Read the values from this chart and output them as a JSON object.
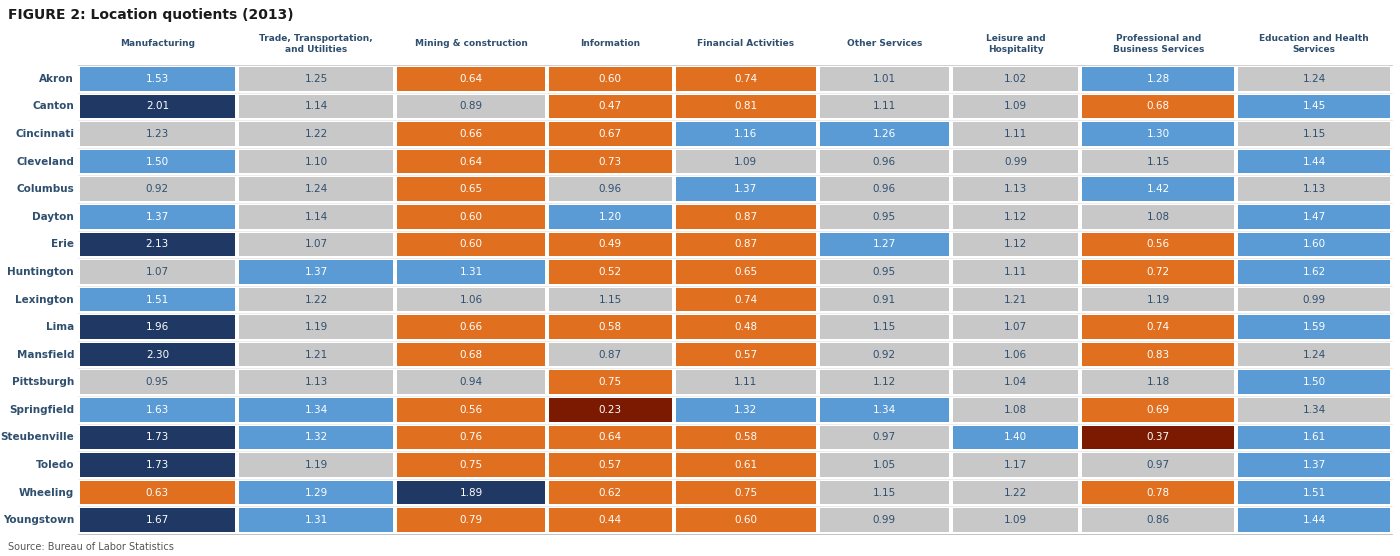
{
  "title": "FIGURE 2: Location quotients (2013)",
  "source": "Source: Bureau of Labor Statistics",
  "columns": [
    "Manufacturing",
    "Trade, Transportation,\nand Utilities",
    "Mining & construction",
    "Information",
    "Financial Activities",
    "Other Services",
    "Leisure and\nHospitality",
    "Professional and\nBusiness Services",
    "Education and Health\nServices"
  ],
  "rows": [
    "Akron",
    "Canton",
    "Cincinnati",
    "Cleveland",
    "Columbus",
    "Dayton",
    "Erie",
    "Huntington",
    "Lexington",
    "Lima",
    "Mansfield",
    "Pittsburgh",
    "Springfield",
    "Steubenville",
    "Toledo",
    "Wheeling",
    "Youngstown"
  ],
  "values": [
    [
      1.53,
      1.25,
      0.64,
      0.6,
      0.74,
      1.01,
      1.02,
      1.28,
      1.24
    ],
    [
      2.01,
      1.14,
      0.89,
      0.47,
      0.81,
      1.11,
      1.09,
      0.68,
      1.45
    ],
    [
      1.23,
      1.22,
      0.66,
      0.67,
      1.16,
      1.26,
      1.11,
      1.3,
      1.15
    ],
    [
      1.5,
      1.1,
      0.64,
      0.73,
      1.09,
      0.96,
      0.99,
      1.15,
      1.44
    ],
    [
      0.92,
      1.24,
      0.65,
      0.96,
      1.37,
      0.96,
      1.13,
      1.42,
      1.13
    ],
    [
      1.37,
      1.14,
      0.6,
      1.2,
      0.87,
      0.95,
      1.12,
      1.08,
      1.47
    ],
    [
      2.13,
      1.07,
      0.6,
      0.49,
      0.87,
      1.27,
      1.12,
      0.56,
      1.6
    ],
    [
      1.07,
      1.37,
      1.31,
      0.52,
      0.65,
      0.95,
      1.11,
      0.72,
      1.62
    ],
    [
      1.51,
      1.22,
      1.06,
      1.15,
      0.74,
      0.91,
      1.21,
      1.19,
      0.99
    ],
    [
      1.96,
      1.19,
      0.66,
      0.58,
      0.48,
      1.15,
      1.07,
      0.74,
      1.59
    ],
    [
      2.3,
      1.21,
      0.68,
      0.87,
      0.57,
      0.92,
      1.06,
      0.83,
      1.24
    ],
    [
      0.95,
      1.13,
      0.94,
      0.75,
      1.11,
      1.12,
      1.04,
      1.18,
      1.5
    ],
    [
      1.63,
      1.34,
      0.56,
      0.23,
      1.32,
      1.34,
      1.08,
      0.69,
      1.34
    ],
    [
      1.73,
      1.32,
      0.76,
      0.64,
      0.58,
      0.97,
      1.4,
      0.37,
      1.61
    ],
    [
      1.73,
      1.19,
      0.75,
      0.57,
      0.61,
      1.05,
      1.17,
      0.97,
      1.37
    ],
    [
      0.63,
      1.29,
      1.89,
      0.62,
      0.75,
      1.15,
      1.22,
      0.78,
      1.51
    ],
    [
      1.67,
      1.31,
      0.79,
      0.44,
      0.6,
      0.99,
      1.09,
      0.86,
      1.44
    ]
  ],
  "cell_colors": [
    [
      "light_blue",
      "gray",
      "orange",
      "orange",
      "orange",
      "gray",
      "gray",
      "light_blue",
      "gray"
    ],
    [
      "dark_blue",
      "gray",
      "gray",
      "orange",
      "orange",
      "gray",
      "gray",
      "orange",
      "light_blue"
    ],
    [
      "gray",
      "gray",
      "orange",
      "orange",
      "light_blue",
      "light_blue",
      "gray",
      "light_blue",
      "gray"
    ],
    [
      "light_blue",
      "gray",
      "orange",
      "orange",
      "gray",
      "gray",
      "gray",
      "gray",
      "light_blue"
    ],
    [
      "gray",
      "gray",
      "orange",
      "gray",
      "light_blue",
      "gray",
      "gray",
      "light_blue",
      "gray"
    ],
    [
      "light_blue",
      "gray",
      "orange",
      "light_blue",
      "orange",
      "gray",
      "gray",
      "gray",
      "light_blue"
    ],
    [
      "dark_blue",
      "gray",
      "orange",
      "orange",
      "orange",
      "light_blue",
      "gray",
      "orange",
      "light_blue"
    ],
    [
      "gray",
      "light_blue",
      "light_blue",
      "orange",
      "orange",
      "gray",
      "gray",
      "orange",
      "light_blue"
    ],
    [
      "light_blue",
      "gray",
      "gray",
      "gray",
      "orange",
      "gray",
      "gray",
      "gray",
      "gray"
    ],
    [
      "dark_blue",
      "gray",
      "orange",
      "orange",
      "orange",
      "gray",
      "gray",
      "orange",
      "light_blue"
    ],
    [
      "dark_blue",
      "gray",
      "orange",
      "gray",
      "orange",
      "gray",
      "gray",
      "orange",
      "gray"
    ],
    [
      "gray",
      "gray",
      "gray",
      "orange",
      "gray",
      "gray",
      "gray",
      "gray",
      "light_blue"
    ],
    [
      "light_blue",
      "light_blue",
      "orange",
      "dark_red",
      "light_blue",
      "light_blue",
      "gray",
      "orange",
      "gray"
    ],
    [
      "dark_blue",
      "light_blue",
      "orange",
      "orange",
      "orange",
      "gray",
      "light_blue",
      "dark_red",
      "light_blue"
    ],
    [
      "dark_blue",
      "gray",
      "orange",
      "orange",
      "orange",
      "gray",
      "gray",
      "gray",
      "light_blue"
    ],
    [
      "orange",
      "light_blue",
      "dark_blue",
      "orange",
      "orange",
      "gray",
      "gray",
      "orange",
      "light_blue"
    ],
    [
      "dark_blue",
      "light_blue",
      "orange",
      "orange",
      "orange",
      "gray",
      "gray",
      "gray",
      "light_blue"
    ]
  ],
  "color_map": {
    "light_blue": "#5B9BD5",
    "dark_blue": "#1F3864",
    "orange": "#E07020",
    "dark_red": "#7B1A00",
    "gray": "#C8C8C8"
  },
  "text_color_map": {
    "light_blue": "white",
    "dark_blue": "white",
    "orange": "white",
    "dark_red": "white",
    "gray": "#2F4F6F"
  },
  "fig_width": 14.0,
  "fig_height": 5.56,
  "dpi": 100
}
